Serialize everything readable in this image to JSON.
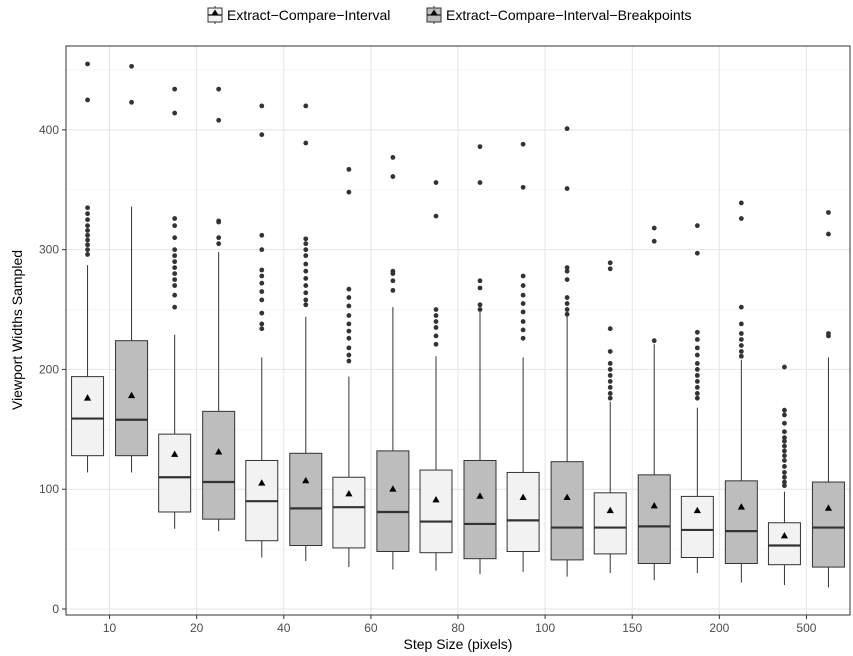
{
  "chart_data": {
    "type": "boxplot",
    "title": "",
    "xlabel": "Step Size (pixels)",
    "ylabel": "Viewport Widths Sampled",
    "ylim": [
      -5,
      470
    ],
    "yticks": [
      0,
      100,
      200,
      300,
      400
    ],
    "categories": [
      "10",
      "20",
      "40",
      "60",
      "80",
      "100",
      "150",
      "200",
      "500"
    ],
    "grid": true,
    "legend_position": "top",
    "series": [
      {
        "name": "Extract−Compare−Interval",
        "fill": "#f2f2f2",
        "boxes": [
          {
            "whisker_low": 114,
            "q1": 128,
            "median": 159,
            "q3": 194,
            "whisker_high": 287,
            "mean": 176,
            "outliers": [
              455,
              425,
              335,
              330,
              325,
              320,
              316,
              312,
              308,
              304,
              300,
              296
            ]
          },
          {
            "whisker_low": 67,
            "q1": 81,
            "median": 110,
            "q3": 146,
            "whisker_high": 229,
            "mean": 129,
            "outliers": [
              434,
              414,
              326,
              320,
              310,
              300,
              295,
              290,
              285,
              280,
              275,
              270,
              262,
              252
            ]
          },
          {
            "whisker_low": 43,
            "q1": 57,
            "median": 90,
            "q3": 124,
            "whisker_high": 210,
            "mean": 105,
            "outliers": [
              420,
              396,
              312,
              300,
              283,
              278,
              272,
              265,
              258,
              247,
              238,
              234
            ]
          },
          {
            "whisker_low": 35,
            "q1": 51,
            "median": 85,
            "q3": 110,
            "whisker_high": 194,
            "mean": 96,
            "outliers": [
              367,
              348,
              267,
              260,
              253,
              245,
              238,
              232,
              226,
              218,
              212,
              207
            ]
          },
          {
            "whisker_low": 32,
            "q1": 47,
            "median": 73,
            "q3": 116,
            "whisker_high": 211,
            "mean": 91,
            "outliers": [
              356,
              328,
              250,
              245,
              240,
              235,
              228,
              221
            ]
          },
          {
            "whisker_low": 31,
            "q1": 48,
            "median": 74,
            "q3": 114,
            "whisker_high": 210,
            "mean": 93,
            "outliers": [
              388,
              352,
              278,
              270,
              262,
              255,
              248,
              240,
              233,
              226
            ]
          },
          {
            "whisker_low": 30,
            "q1": 46,
            "median": 68,
            "q3": 97,
            "whisker_high": 173,
            "mean": 82,
            "outliers": [
              289,
              284,
              234,
              215,
              205,
              200,
              195,
              190,
              185,
              180,
              176
            ]
          },
          {
            "whisker_low": 30,
            "q1": 43,
            "median": 66,
            "q3": 94,
            "whisker_high": 168,
            "mean": 82,
            "outliers": [
              320,
              297,
              231,
              225,
              218,
              212,
              205,
              200,
              195,
              190,
              185,
              180,
              176
            ]
          },
          {
            "whisker_low": 20,
            "q1": 37,
            "median": 53,
            "q3": 72,
            "whisker_high": 98,
            "mean": 61,
            "outliers": [
              202,
              166,
              162,
              155,
              148,
              143,
              140,
              136,
              132,
              128,
              124,
              119,
              114,
              110,
              106,
              103
            ]
          }
        ]
      },
      {
        "name": "Extract−Compare−Interval−Breakpoints",
        "fill": "#bdbdbd",
        "boxes": [
          {
            "whisker_low": 114,
            "q1": 128,
            "median": 158,
            "q3": 224,
            "whisker_high": 336,
            "mean": 178,
            "outliers": [
              453,
              423
            ]
          },
          {
            "whisker_low": 65,
            "q1": 75,
            "median": 106,
            "q3": 165,
            "whisker_high": 298,
            "mean": 131,
            "outliers": [
              434,
              408,
              324,
              323,
              310,
              305
            ]
          },
          {
            "whisker_low": 40,
            "q1": 53,
            "median": 84,
            "q3": 130,
            "whisker_high": 244,
            "mean": 107,
            "outliers": [
              420,
              389,
              309,
              305,
              300,
              295,
              288,
              282,
              276,
              270,
              264,
              258,
              254
            ]
          },
          {
            "whisker_low": 33,
            "q1": 48,
            "median": 81,
            "q3": 132,
            "whisker_high": 252,
            "mean": 100,
            "outliers": [
              377,
              361,
              282,
              280,
              274,
              266
            ]
          },
          {
            "whisker_low": 29,
            "q1": 42,
            "median": 71,
            "q3": 124,
            "whisker_high": 248,
            "mean": 94,
            "outliers": [
              386,
              356,
              274,
              268,
              254,
              250
            ]
          },
          {
            "whisker_low": 27,
            "q1": 41,
            "median": 68,
            "q3": 123,
            "whisker_high": 245,
            "mean": 93,
            "outliers": [
              401,
              351,
              285,
              282,
              275,
              260,
              255,
              250,
              246
            ]
          },
          {
            "whisker_low": 24,
            "q1": 38,
            "median": 69,
            "q3": 112,
            "whisker_high": 221,
            "mean": 86,
            "outliers": [
              318,
              307,
              224
            ]
          },
          {
            "whisker_low": 22,
            "q1": 38,
            "median": 65,
            "q3": 107,
            "whisker_high": 208,
            "mean": 85,
            "outliers": [
              339,
              326,
              252,
              238,
              230,
              225,
              220,
              215,
              211
            ]
          },
          {
            "whisker_low": 18,
            "q1": 35,
            "median": 68,
            "q3": 106,
            "whisker_high": 210,
            "mean": 84,
            "outliers": [
              331,
              313,
              230,
              228
            ]
          }
        ]
      }
    ]
  }
}
